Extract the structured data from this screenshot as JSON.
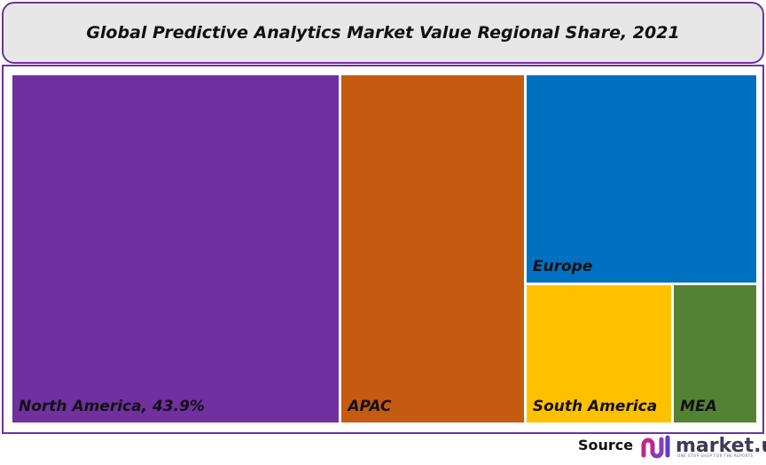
{
  "chart_data": {
    "type": "treemap",
    "title": "Global Predictive Analytics Market Value Regional Share, 2021",
    "unit": "%",
    "items": [
      {
        "name": "North America",
        "label": "North America, 43.9%",
        "value": 43.9,
        "color": "#7030a0"
      },
      {
        "name": "APAC",
        "label": "APAC",
        "value": 24.5,
        "color": "#c55a11"
      },
      {
        "name": "Europe",
        "label": "Europe",
        "value": 18.9,
        "color": "#0070c0"
      },
      {
        "name": "South America",
        "label": "South America",
        "value": 8.0,
        "color": "#ffc000"
      },
      {
        "name": "MEA",
        "label": "MEA",
        "value": 4.7,
        "color": "#548235"
      }
    ]
  },
  "source": {
    "label": "Source",
    "brand": "market.us",
    "tagline": "ONE STOP SHOP FOR THE REPORTS"
  }
}
